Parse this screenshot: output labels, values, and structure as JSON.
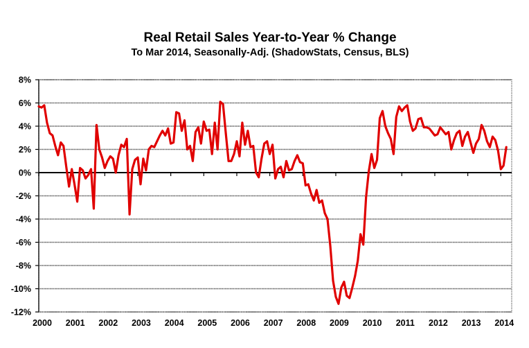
{
  "chart_data": {
    "type": "line",
    "title": "Real Retail Sales Year-to-Year % Change",
    "subtitle": "To Mar 2014, Seasonally-Adj. (ShadowStats, Census, BLS)",
    "xlabel": "",
    "ylabel": "",
    "ylim": [
      -12,
      8
    ],
    "xlim": [
      2000,
      2014.33
    ],
    "grid": true,
    "legend": "none",
    "yticks": [
      8,
      6,
      4,
      2,
      0,
      -2,
      -4,
      -6,
      -8,
      -10,
      -12
    ],
    "ytick_labels": [
      "8%",
      "6%",
      "4%",
      "2%",
      "0%",
      "-2%",
      "-4%",
      "-6%",
      "-8%",
      "-10%",
      "-12%"
    ],
    "xtick_labels": [
      "2000",
      "2001",
      "2002",
      "2003",
      "2004",
      "2005",
      "2006",
      "2007",
      "2008",
      "2009",
      "2010",
      "2011",
      "2012",
      "2013",
      "2014"
    ],
    "series": [
      {
        "name": "Real Retail Sales Year-to-Year % Change",
        "color": "#e00000",
        "start": "2000-01",
        "frequency": "monthly",
        "values": [
          5.7,
          5.6,
          5.8,
          4.3,
          3.4,
          3.2,
          2.3,
          1.5,
          2.6,
          2.3,
          0.5,
          -1.2,
          0.3,
          -1.0,
          -2.5,
          0.4,
          0.2,
          -0.5,
          -0.2,
          0.3,
          -3.1,
          4.1,
          2.0,
          1.3,
          0.4,
          1.0,
          1.4,
          1.2,
          0.0,
          1.5,
          2.4,
          2.2,
          2.9,
          -3.6,
          0.3,
          1.1,
          1.3,
          -1.0,
          1.2,
          0.2,
          2.0,
          2.3,
          2.2,
          2.7,
          3.2,
          3.6,
          3.2,
          3.8,
          2.5,
          2.6,
          5.2,
          5.1,
          3.6,
          4.5,
          2.0,
          2.3,
          1.0,
          3.5,
          3.9,
          2.5,
          4.4,
          3.6,
          3.7,
          1.6,
          4.3,
          2.0,
          6.1,
          5.9,
          3.4,
          1.0,
          1.0,
          1.6,
          2.7,
          1.4,
          4.3,
          2.4,
          3.6,
          2.2,
          2.3,
          0.0,
          -0.4,
          1.2,
          2.5,
          2.7,
          1.6,
          2.4,
          -0.5,
          0.3,
          0.5,
          -0.4,
          1.0,
          0.2,
          0.3,
          1.0,
          1.5,
          0.9,
          0.8,
          -1.1,
          -1.0,
          -1.8,
          -2.4,
          -1.5,
          -2.6,
          -2.4,
          -3.5,
          -4.0,
          -6.3,
          -9.3,
          -10.7,
          -11.3,
          -9.9,
          -9.4,
          -10.6,
          -10.8,
          -9.9,
          -8.9,
          -7.6,
          -5.3,
          -6.2,
          -2.1,
          0.1,
          1.6,
          0.4,
          1.1,
          4.7,
          5.3,
          4.0,
          3.4,
          2.9,
          1.6,
          4.8,
          5.7,
          5.3,
          5.6,
          5.8,
          4.4,
          3.6,
          3.8,
          4.6,
          4.7,
          3.9,
          3.9,
          3.8,
          3.5,
          3.2,
          3.3,
          3.9,
          3.6,
          3.3,
          3.5,
          2.0,
          2.8,
          3.4,
          3.6,
          2.3,
          3.1,
          3.5,
          2.6,
          1.7,
          2.5,
          2.9,
          4.1,
          3.6,
          2.7,
          2.2,
          3.1,
          2.8,
          1.9,
          0.3,
          0.6,
          2.2
        ]
      }
    ]
  }
}
